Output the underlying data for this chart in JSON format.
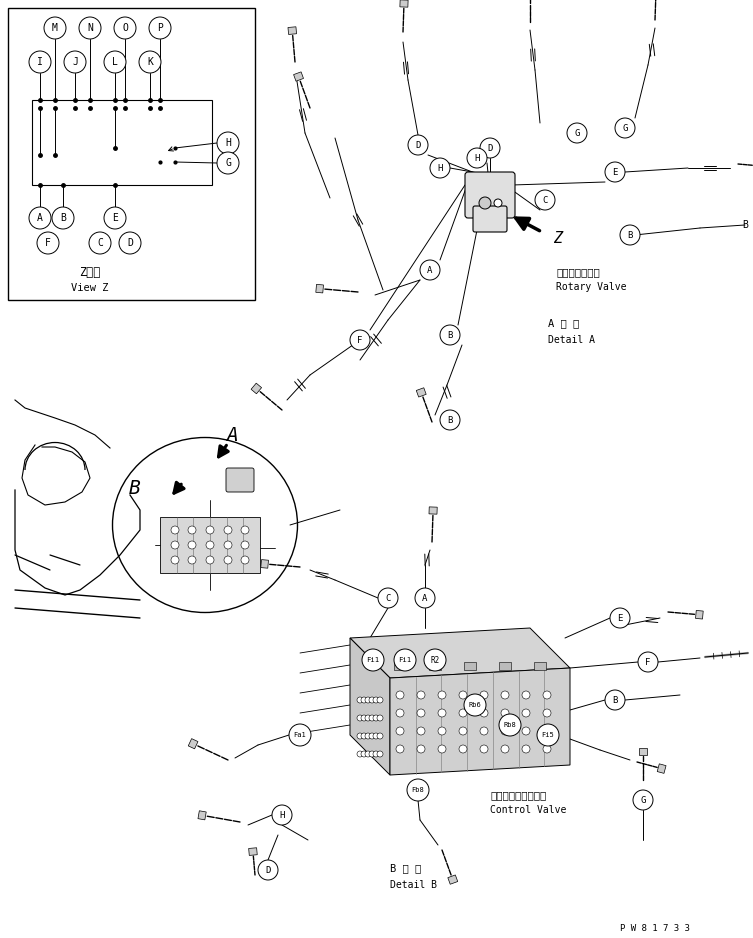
{
  "bg_color": "#ffffff",
  "line_color": "#000000",
  "fig_width": 7.53,
  "fig_height": 9.38,
  "dpi": 100,
  "part_number": "P W 8 1 7 3 3",
  "detail_a_label1": "A 詳 細",
  "detail_a_label2": "Detail A",
  "detail_b_label1": "B 詳 細",
  "detail_b_label2": "Detail B",
  "rotary_valve_jp": "ロータリバルブ",
  "rotary_valve_en": "Rotary Valve",
  "control_valve_jp": "コントロールバルブ",
  "control_valve_en": "Control Valve",
  "view_z_jp": "Z　視",
  "view_z_en": "View Z"
}
